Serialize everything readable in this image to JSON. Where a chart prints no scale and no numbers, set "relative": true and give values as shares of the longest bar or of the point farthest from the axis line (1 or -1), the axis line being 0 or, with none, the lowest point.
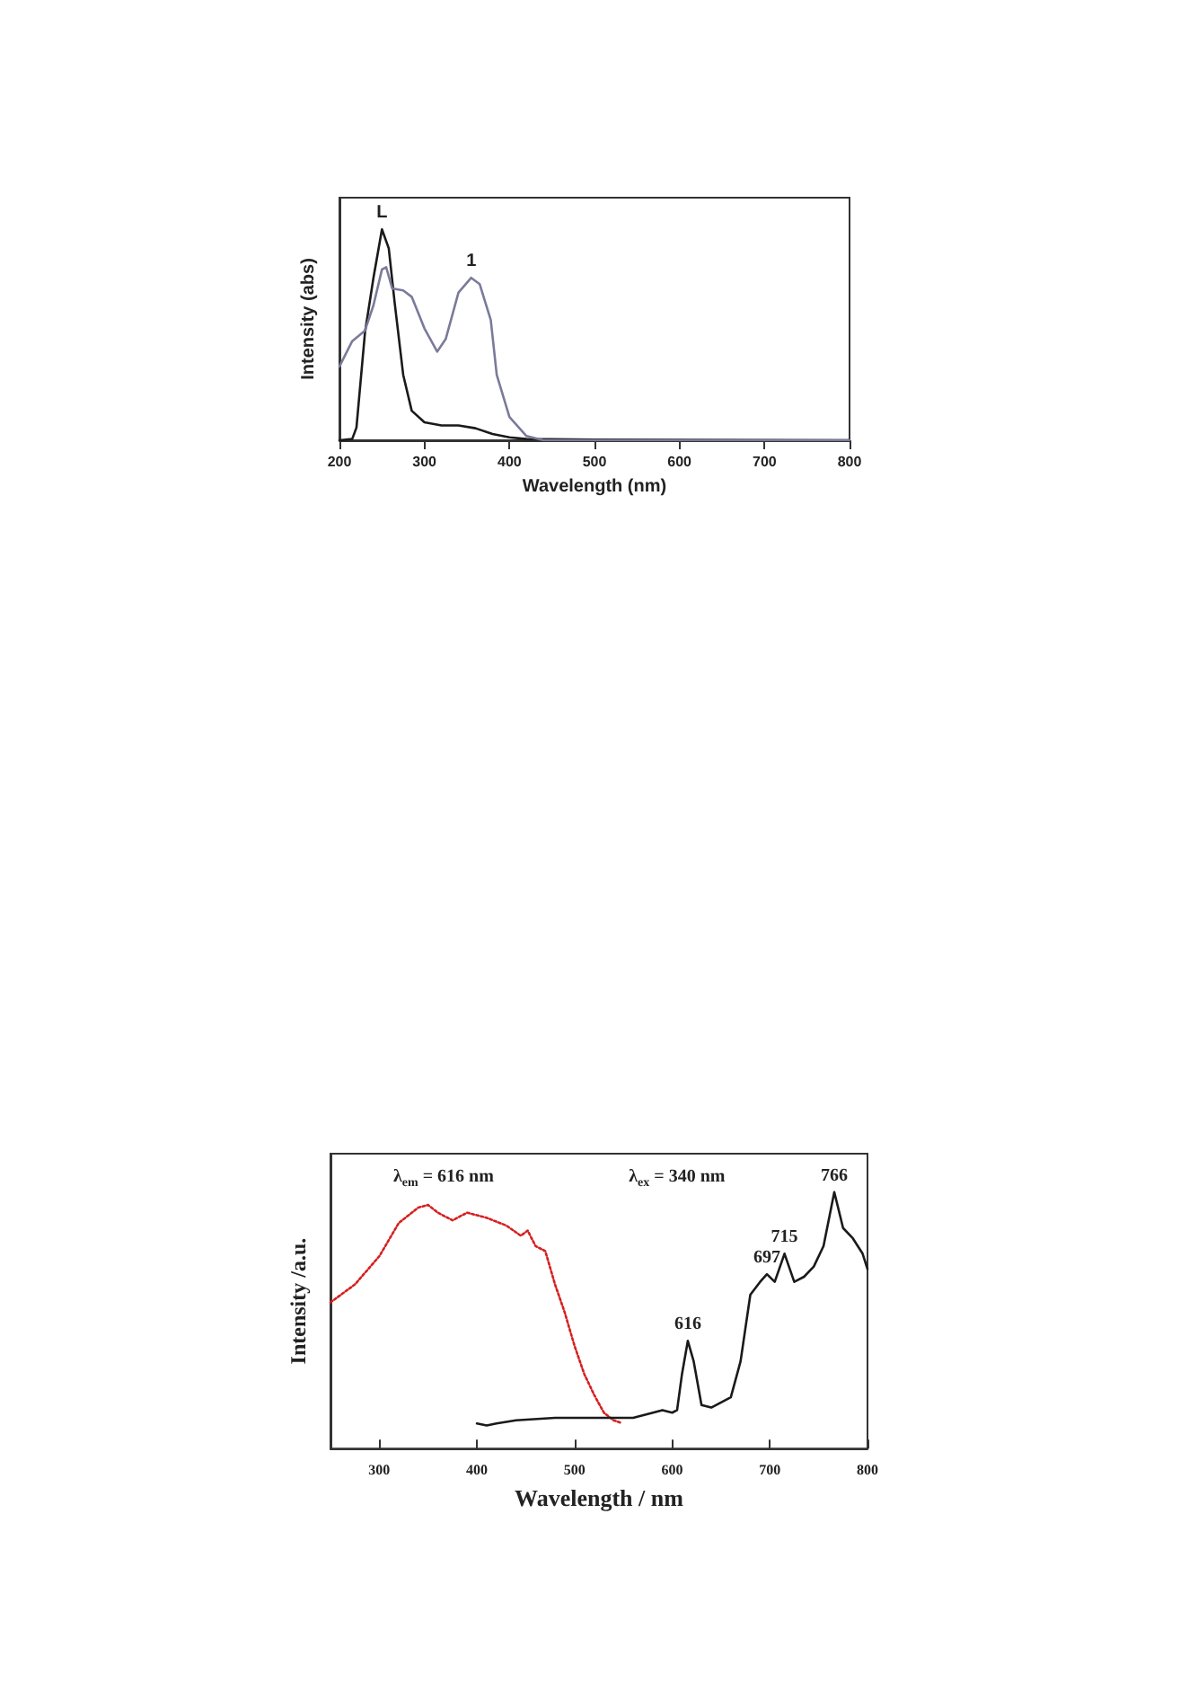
{
  "chart_data": [
    {
      "type": "line",
      "xlabel": "Wavelength (nm)",
      "ylabel": "Intensity (abs)",
      "relative": true,
      "xlim": [
        200,
        800
      ],
      "xticks": [
        200,
        300,
        400,
        500,
        600,
        700,
        800
      ],
      "grid": false,
      "marker": "none",
      "line_style": "solid",
      "series": [
        {
          "color": "#1a1a1a",
          "x": [
            200,
            215,
            220,
            230,
            240,
            250,
            258,
            265,
            275,
            285,
            300,
            320,
            340,
            360,
            380,
            400,
            420,
            500,
            800
          ],
          "values": [
            0,
            0.006,
            0.06,
            0.51,
            0.77,
            1,
            0.91,
            0.65,
            0.31,
            0.14,
            0.085,
            0.07,
            0.07,
            0.057,
            0.03,
            0.014,
            0.006,
            0.003,
            0
          ]
        },
        {
          "color": "#7a7a9a",
          "x": [
            200,
            215,
            230,
            240,
            250,
            255,
            262,
            275,
            285,
            300,
            315,
            325,
            340,
            355,
            365,
            378,
            385,
            400,
            420,
            440,
            800
          ],
          "values": [
            0.35,
            0.47,
            0.52,
            0.64,
            0.81,
            0.82,
            0.72,
            0.71,
            0.68,
            0.53,
            0.42,
            0.48,
            0.7,
            0.77,
            0.74,
            0.57,
            0.31,
            0.11,
            0.02,
            0,
            0
          ]
        }
      ],
      "annotations": [
        {
          "text": "L",
          "x": 250,
          "y": 1
        },
        {
          "text": "1",
          "x": 355,
          "y": 0.77
        }
      ]
    },
    {
      "type": "line",
      "xlabel": "Wavelength / nm",
      "ylabel": "Intensity /a.u.",
      "relative": true,
      "xlim": [
        250,
        800
      ],
      "xticks": [
        300,
        400,
        500,
        600,
        700,
        800
      ],
      "grid": false,
      "marker": "none",
      "line_style": "solid",
      "series": [
        {
          "color": "#d62020",
          "line_style": "dotted",
          "x": [
            250,
            275,
            300,
            320,
            340,
            350,
            360,
            375,
            390,
            410,
            430,
            445,
            452,
            460,
            470,
            480,
            490,
            500,
            510,
            520,
            530,
            540,
            548
          ],
          "values": [
            0.57,
            0.64,
            0.75,
            0.88,
            0.94,
            0.95,
            0.92,
            0.89,
            0.92,
            0.9,
            0.87,
            0.83,
            0.85,
            0.79,
            0.77,
            0.64,
            0.53,
            0.4,
            0.29,
            0.21,
            0.14,
            0.11,
            0.1
          ]
        },
        {
          "color": "#1a1a1a",
          "x": [
            400,
            410,
            420,
            440,
            480,
            520,
            560,
            590,
            600,
            605,
            610,
            616,
            622,
            630,
            640,
            660,
            670,
            680,
            690,
            697,
            705,
            715,
            725,
            735,
            745,
            755,
            766,
            775,
            785,
            795,
            800
          ],
          "values": [
            0.098,
            0.09,
            0.098,
            0.11,
            0.12,
            0.12,
            0.12,
            0.15,
            0.14,
            0.15,
            0.29,
            0.42,
            0.34,
            0.17,
            0.16,
            0.2,
            0.34,
            0.6,
            0.65,
            0.68,
            0.65,
            0.76,
            0.65,
            0.67,
            0.71,
            0.79,
            1,
            0.86,
            0.82,
            0.76,
            0.7
          ]
        }
      ],
      "annotations": [
        "λ$_{em}$ = 616 nm",
        "λ$_{ex}$ = 340 nm",
        {
          "text": "616",
          "x": 616,
          "y": 0.42
        },
        {
          "text": "697",
          "x": 697,
          "y": 0.68
        },
        {
          "text": "715",
          "x": 715,
          "y": 0.76
        },
        {
          "text": "766",
          "x": 766,
          "y": 1
        }
      ]
    }
  ]
}
